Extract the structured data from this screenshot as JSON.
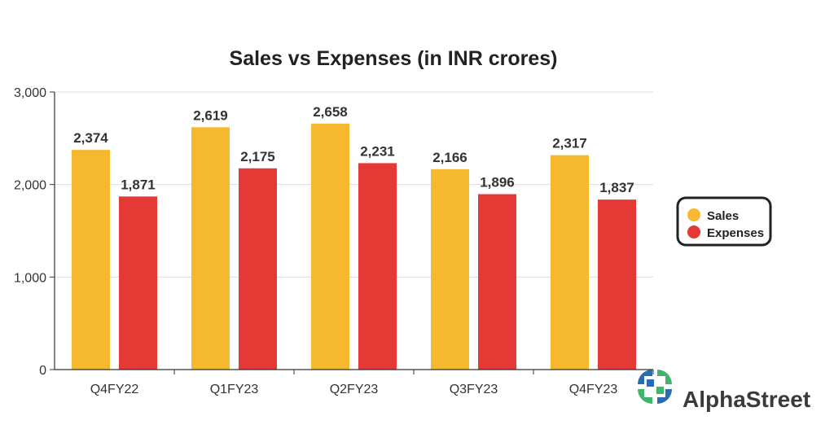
{
  "chart_data": {
    "type": "bar",
    "title": "Sales vs Expenses (in INR crores)",
    "categories": [
      "Q4FY22",
      "Q1FY23",
      "Q2FY23",
      "Q3FY23",
      "Q4FY23"
    ],
    "series": [
      {
        "name": "Sales",
        "color": "#F5B82E",
        "values": [
          2374,
          2619,
          2658,
          2166,
          2317
        ],
        "labels": [
          "2,374",
          "2,619",
          "2,658",
          "2,166",
          "2,317"
        ]
      },
      {
        "name": "Expenses",
        "color": "#E53935",
        "values": [
          1871,
          2175,
          2231,
          1896,
          1837
        ],
        "labels": [
          "1,871",
          "2,175",
          "2,231",
          "1,896",
          "1,837"
        ]
      }
    ],
    "ylim": [
      0,
      3000
    ],
    "yticks": [
      0,
      1000,
      2000,
      3000
    ],
    "ytick_labels": [
      "0",
      "1,000",
      "2,000",
      "3,000"
    ],
    "xlabel": "",
    "ylabel": "",
    "grid": true,
    "legend_position": "right"
  },
  "brand": {
    "name": "AlphaStreet",
    "logo_icon": "alphastreet-logo-icon",
    "logo_colors": [
      "#2B6CB0",
      "#3FB56B"
    ]
  }
}
